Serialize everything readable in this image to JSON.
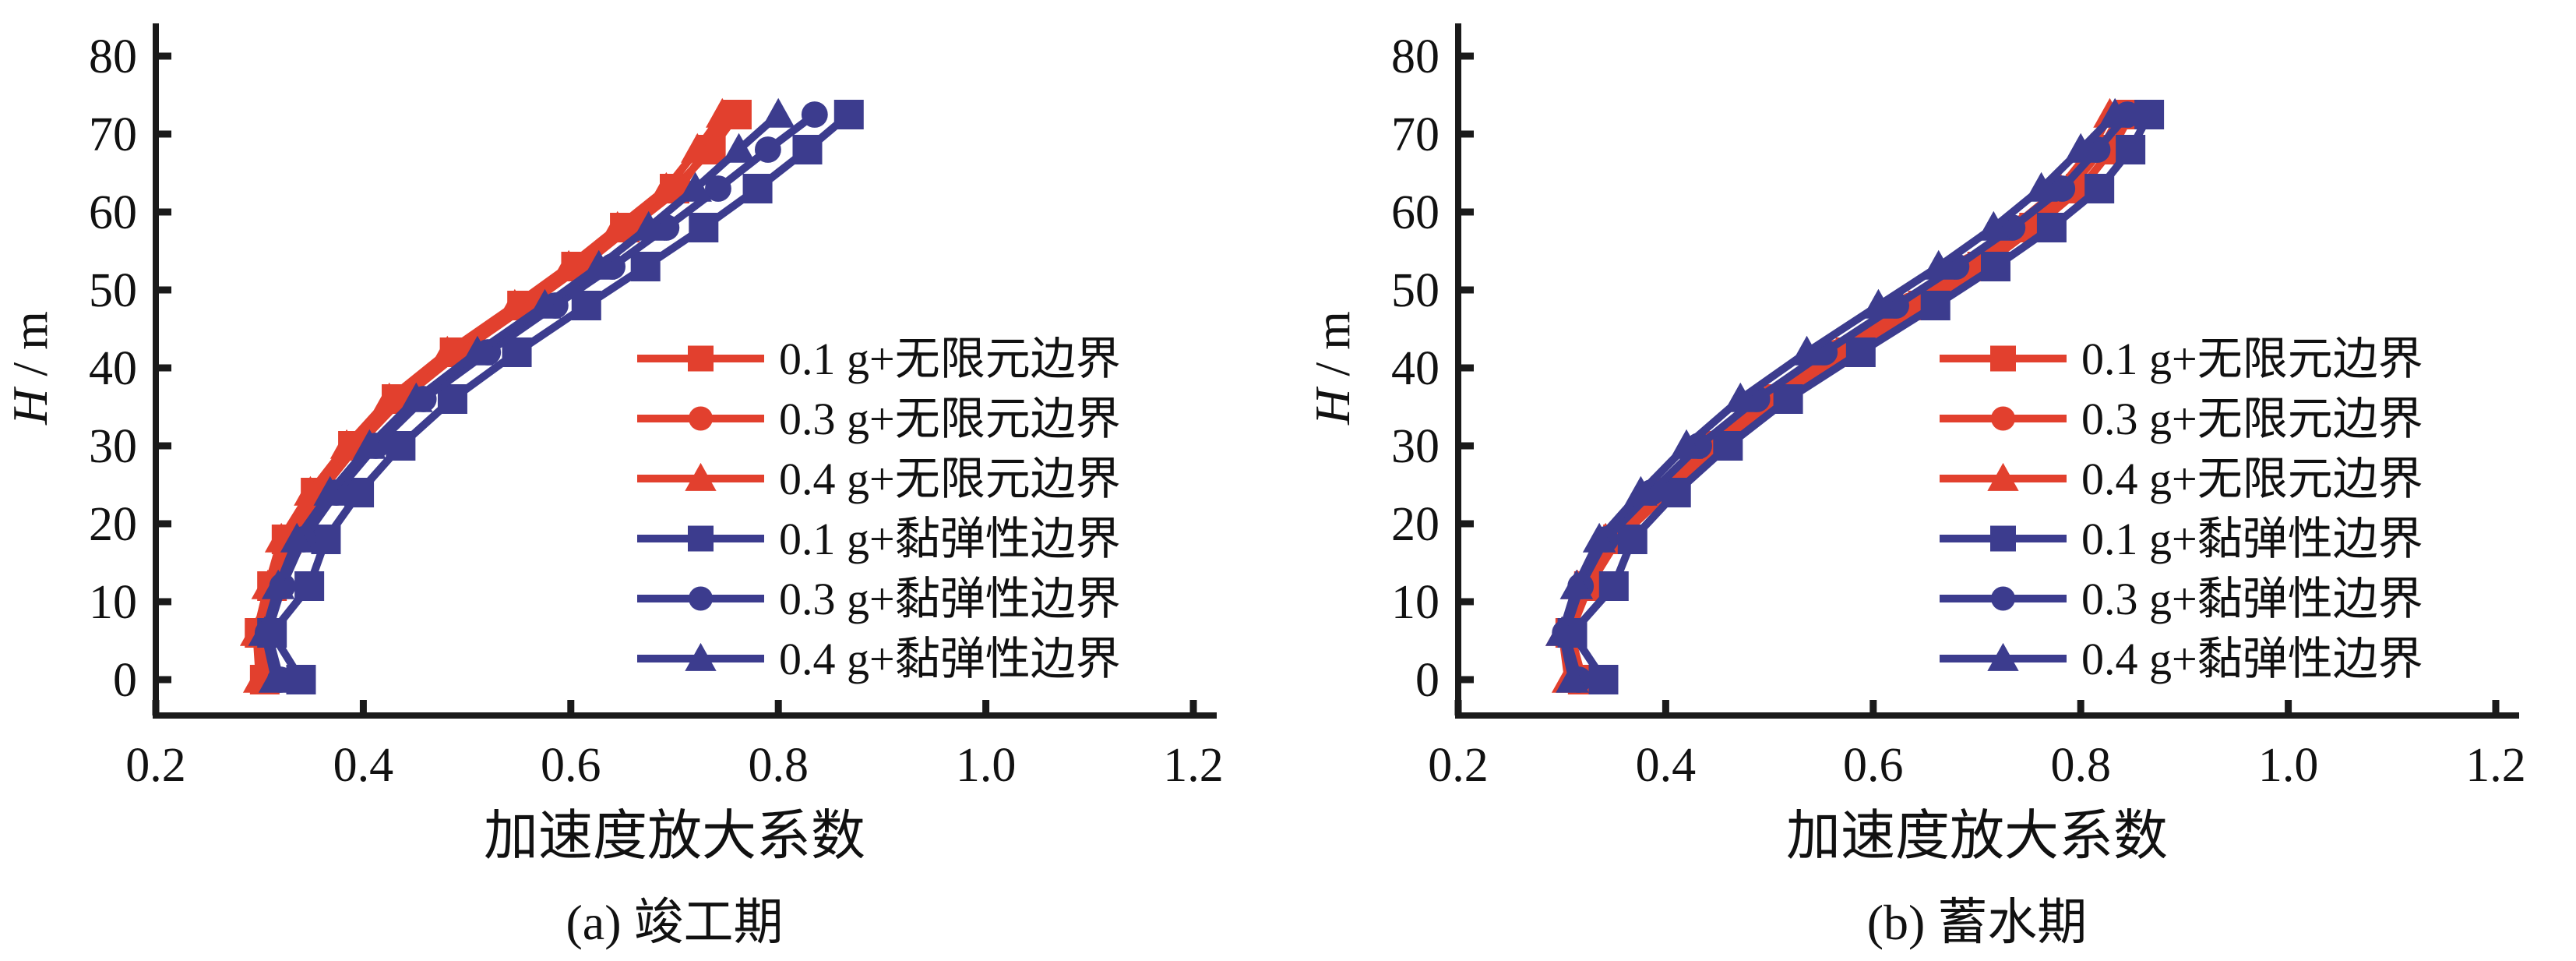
{
  "figure": {
    "background": "#ffffff",
    "axis_color": "#1a1a1a",
    "text_color": "#111111"
  },
  "chart_data": [
    {
      "type": "line",
      "caption": "(a) 竣工期",
      "xlabel": "加速度放大系数",
      "ylabel_italic": "H",
      "ylabel_rest": " / m",
      "xlim": [
        0.2,
        1.22
      ],
      "ylim": [
        -4.6,
        84
      ],
      "x_ticks": [
        0.2,
        0.4,
        0.6,
        0.8,
        1.0,
        1.2
      ],
      "x_tick_labels": [
        "0.2",
        "0.4",
        "0.6",
        "0.8",
        "1.0",
        "1.2"
      ],
      "y_ticks": [
        0,
        10,
        20,
        30,
        40,
        50,
        60,
        70,
        80
      ],
      "y_tick_labels": [
        "0",
        "10",
        "20",
        "30",
        "40",
        "50",
        "60",
        "70",
        "80"
      ],
      "grid": false,
      "legend_position": "inside-right",
      "heights_m": [
        0,
        6,
        12,
        18,
        24,
        30,
        36,
        42,
        48,
        53,
        58,
        63,
        68,
        72.5
      ],
      "series": [
        {
          "name": "0.1 g+无限元边界",
          "color": "#e2402e",
          "marker": "square",
          "values": [
            0.305,
            0.3,
            0.312,
            0.326,
            0.354,
            0.39,
            0.432,
            0.488,
            0.553,
            0.605,
            0.652,
            0.7,
            0.735,
            0.76
          ]
        },
        {
          "name": "0.3 g+无限元边界",
          "color": "#e2402e",
          "marker": "circle",
          "values": [
            0.31,
            0.302,
            0.315,
            0.33,
            0.358,
            0.394,
            0.437,
            0.493,
            0.558,
            0.61,
            0.657,
            0.705,
            0.73,
            0.752
          ]
        },
        {
          "name": "0.4 g+无限元边界",
          "color": "#e2402e",
          "marker": "triangle",
          "values": [
            0.3,
            0.297,
            0.308,
            0.321,
            0.349,
            0.384,
            0.425,
            0.481,
            0.546,
            0.598,
            0.645,
            0.692,
            0.722,
            0.746
          ]
        },
        {
          "name": "0.1 g+黏弹性边界",
          "color": "#3c3c8e",
          "marker": "square",
          "values": [
            0.34,
            0.312,
            0.348,
            0.364,
            0.396,
            0.436,
            0.486,
            0.548,
            0.615,
            0.672,
            0.728,
            0.78,
            0.828,
            0.868
          ]
        },
        {
          "name": "0.3 g+黏弹性边界",
          "color": "#3c3c8e",
          "marker": "circle",
          "values": [
            0.32,
            0.308,
            0.322,
            0.342,
            0.374,
            0.412,
            0.458,
            0.52,
            0.585,
            0.64,
            0.692,
            0.742,
            0.79,
            0.835
          ]
        },
        {
          "name": "0.4 g+黏弹性边界",
          "color": "#3c3c8e",
          "marker": "triangle",
          "values": [
            0.315,
            0.305,
            0.318,
            0.336,
            0.368,
            0.406,
            0.451,
            0.51,
            0.575,
            0.627,
            0.675,
            0.72,
            0.762,
            0.8
          ]
        }
      ]
    },
    {
      "type": "line",
      "caption": "(b) 蓄水期",
      "xlabel": "加速度放大系数",
      "ylabel_italic": "H",
      "ylabel_rest": " / m",
      "xlim": [
        0.2,
        1.22
      ],
      "ylim": [
        -4.6,
        84
      ],
      "x_ticks": [
        0.2,
        0.4,
        0.6,
        0.8,
        1.0,
        1.2
      ],
      "x_tick_labels": [
        "0.2",
        "0.4",
        "0.6",
        "0.8",
        "1.0",
        "1.2"
      ],
      "y_ticks": [
        0,
        10,
        20,
        30,
        40,
        50,
        60,
        70,
        80
      ],
      "y_tick_labels": [
        "0",
        "10",
        "20",
        "30",
        "40",
        "50",
        "60",
        "70",
        "80"
      ],
      "grid": false,
      "legend_position": "inside-right",
      "heights_m": [
        0,
        6,
        12,
        18,
        24,
        30,
        36,
        42,
        48,
        53,
        58,
        63,
        68,
        72.5
      ],
      "series": [
        {
          "name": "0.1 g+无限元边界",
          "color": "#e2402e",
          "marker": "square",
          "values": [
            0.32,
            0.308,
            0.326,
            0.354,
            0.402,
            0.452,
            0.51,
            0.578,
            0.648,
            0.705,
            0.755,
            0.8,
            0.83,
            0.848
          ]
        },
        {
          "name": "0.3 g+无限元边界",
          "color": "#e2402e",
          "marker": "circle",
          "values": [
            0.312,
            0.304,
            0.32,
            0.348,
            0.394,
            0.443,
            0.5,
            0.566,
            0.636,
            0.694,
            0.745,
            0.79,
            0.82,
            0.838
          ]
        },
        {
          "name": "0.4 g+无限元边界",
          "color": "#e2402e",
          "marker": "triangle",
          "values": [
            0.306,
            0.3,
            0.315,
            0.342,
            0.386,
            0.434,
            0.49,
            0.555,
            0.624,
            0.682,
            0.734,
            0.78,
            0.81,
            0.828
          ]
        },
        {
          "name": "0.1 g+黏弹性边界",
          "color": "#3c3c8e",
          "marker": "square",
          "values": [
            0.34,
            0.31,
            0.35,
            0.368,
            0.41,
            0.46,
            0.518,
            0.588,
            0.66,
            0.718,
            0.772,
            0.818,
            0.848,
            0.866
          ]
        },
        {
          "name": "0.3 g+黏弹性边界",
          "color": "#3c3c8e",
          "marker": "circle",
          "values": [
            0.316,
            0.303,
            0.318,
            0.342,
            0.386,
            0.432,
            0.488,
            0.553,
            0.622,
            0.68,
            0.734,
            0.782,
            0.816,
            0.845
          ]
        },
        {
          "name": "0.4 g+黏弹性边界",
          "color": "#3c3c8e",
          "marker": "triangle",
          "values": [
            0.31,
            0.3,
            0.314,
            0.336,
            0.376,
            0.42,
            0.472,
            0.536,
            0.605,
            0.663,
            0.716,
            0.762,
            0.8,
            0.833
          ]
        }
      ]
    }
  ]
}
